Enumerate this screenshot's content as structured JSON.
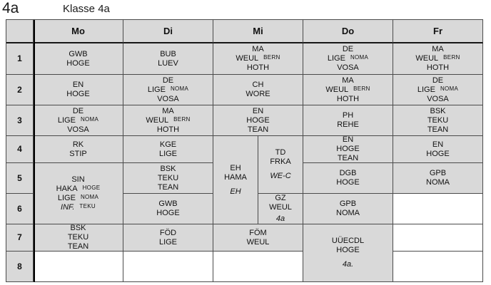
{
  "page": {
    "class_tag": "4a",
    "title": "Klasse 4a"
  },
  "colors": {
    "cell_fill": "#d9d9d9",
    "empty_cell_fill": "#ffffff",
    "grid_line": "#4b4b4b",
    "thick_divider": "#000000",
    "text": "#111111"
  },
  "header": {
    "days": {
      "mo": "Mo",
      "di": "Di",
      "mi": "Mi",
      "do": "Do",
      "fr": "Fr"
    }
  },
  "periods": {
    "p1": "1",
    "p2": "2",
    "p3": "3",
    "p4": "4",
    "p5": "5",
    "p6": "6",
    "p7": "7",
    "p8": "8"
  },
  "cells": {
    "mo_r1": {
      "l1": "GWB",
      "l2": "HOGE"
    },
    "mo_r2": {
      "l1": "EN",
      "l2": "HOGE"
    },
    "mo_r3": {
      "l1": "DE",
      "l2": "LIGE",
      "l2s": "NOMA",
      "l3": "VOSA"
    },
    "mo_r4": {
      "l1": "RK",
      "l2": "STIP"
    },
    "mo_r56": {
      "l1": "SIN",
      "l2": "HAKA",
      "l2s": "HOGE",
      "l3": "LIGE",
      "l3s": "NOMA",
      "l4": "INF.",
      "l4s": "TEKU"
    },
    "mo_r7": {
      "l1": "BSK",
      "l2": "TEKU",
      "l3": "TEAN"
    },
    "di_r1": {
      "l1": "BUB",
      "l2": "LUEV"
    },
    "di_r2": {
      "l1": "DE",
      "l2": "LIGE",
      "l2s": "NOMA",
      "l3": "VOSA"
    },
    "di_r3": {
      "l1": "MA",
      "l2": "WEUL",
      "l2s": "BERN",
      "l3": "HOTH"
    },
    "di_r4": {
      "l1": "KGE",
      "l2": "LIGE"
    },
    "di_r5": {
      "l1": "BSK",
      "l2": "TEKU",
      "l3": "TEAN"
    },
    "di_r6": {
      "l1": "GWB",
      "l2": "HOGE"
    },
    "di_r7": {
      "l1": "FÖD",
      "l2": "LIGE"
    },
    "mi_r1": {
      "l1": "MA",
      "l2": "WEUL",
      "l2s": "BERN",
      "l3": "HOTH"
    },
    "mi_r2": {
      "l1": "CH",
      "l2": "WORE"
    },
    "mi_r3": {
      "l1": "EN",
      "l2": "HOGE",
      "l3": "TEAN"
    },
    "mi_left_r456": {
      "l1": "EH",
      "l2": "HAMA",
      "l3": "EH"
    },
    "mi_right_r45": {
      "l1": "TD",
      "l2": "FRKA",
      "l3": "WE-C"
    },
    "mi_right_r6": {
      "l1": "GZ",
      "l2": "WEUL",
      "l3": "4a"
    },
    "mi_r7": {
      "l1": "FÖM",
      "l2": "WEUL"
    },
    "do_r1": {
      "l1": "DE",
      "l2": "LIGE",
      "l2s": "NOMA",
      "l3": "VOSA"
    },
    "do_r2": {
      "l1": "MA",
      "l2": "WEUL",
      "l2s": "BERN",
      "l3": "HOTH"
    },
    "do_r3": {
      "l1": "PH",
      "l2": "REHE"
    },
    "do_r4": {
      "l1": "EN",
      "l2": "HOGE",
      "l3": "TEAN"
    },
    "do_r5": {
      "l1": "DGB",
      "l2": "HOGE"
    },
    "do_r6": {
      "l1": "GPB",
      "l2": "NOMA"
    },
    "do_r78": {
      "l1": "UÜECDL",
      "l2": "HOGE",
      "l3": "4a."
    },
    "fr_r1": {
      "l1": "MA",
      "l2": "WEUL",
      "l2s": "BERN",
      "l3": "HOTH"
    },
    "fr_r2": {
      "l1": "DE",
      "l2": "LIGE",
      "l2s": "NOMA",
      "l3": "VOSA"
    },
    "fr_r3": {
      "l1": "BSK",
      "l2": "TEKU",
      "l3": "TEAN"
    },
    "fr_r4": {
      "l1": "EN",
      "l2": "HOGE"
    },
    "fr_r5": {
      "l1": "GPB",
      "l2": "NOMA"
    }
  }
}
